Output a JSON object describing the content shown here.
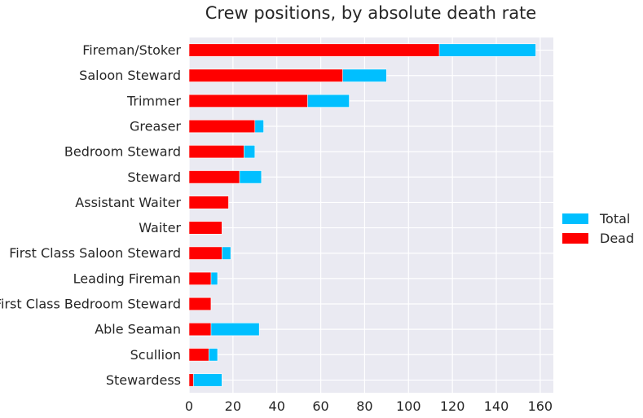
{
  "chart_data": {
    "type": "bar",
    "orientation": "horizontal",
    "stacked_overlay": true,
    "title": "Crew positions, by absolute death rate",
    "xlabel": "",
    "ylabel": "",
    "categories": [
      "Fireman/Stoker",
      "Saloon Steward",
      "Trimmer",
      "Greaser",
      "Bedroom Steward",
      "Steward",
      "Assistant Waiter",
      "Waiter",
      "First Class Saloon Steward",
      "Leading Fireman",
      "First Class Bedroom Steward",
      "Able Seaman",
      "Scullion",
      "Stewardess"
    ],
    "series": [
      {
        "name": "Total",
        "color": "#00bfff",
        "values": [
          158,
          90,
          73,
          34,
          30,
          33,
          18,
          15,
          19,
          13,
          10,
          32,
          13,
          15
        ]
      },
      {
        "name": "Dead",
        "color": "#ff0000",
        "values": [
          114,
          70,
          54,
          30,
          25,
          23,
          18,
          15,
          15,
          10,
          10,
          10,
          9,
          2
        ]
      }
    ],
    "xticks": [
      0,
      20,
      40,
      60,
      80,
      100,
      120,
      140,
      160
    ],
    "xlim": [
      0,
      166
    ],
    "grid": true,
    "legend_position": "center-right outside"
  }
}
